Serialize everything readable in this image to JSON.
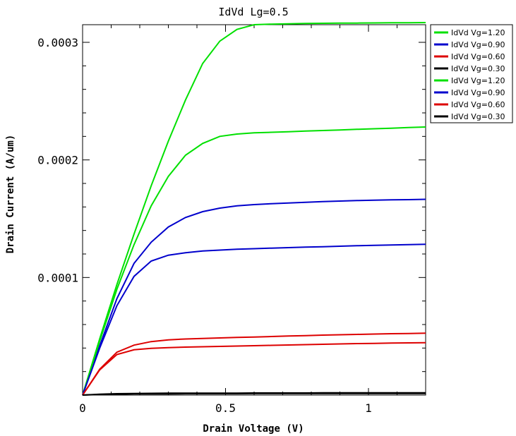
{
  "chart_data": {
    "type": "line",
    "title": "IdVd Lg=0.5",
    "xlabel": "Drain Voltage (V)",
    "ylabel": "Drain Current (A/um)",
    "xlim": [
      0,
      1.2
    ],
    "ylim": [
      0,
      0.000315
    ],
    "xticks": [
      {
        "value": 0,
        "label": "0"
      },
      {
        "value": 0.5,
        "label": "0.5"
      },
      {
        "value": 1,
        "label": "1"
      }
    ],
    "yticks": [
      {
        "value": 0.0001,
        "label": "0.0001"
      },
      {
        "value": 0.0002,
        "label": "0.0002"
      },
      {
        "value": 0.0003,
        "label": "0.0003"
      }
    ],
    "x": [
      0,
      0.06,
      0.12,
      0.18,
      0.24,
      0.3,
      0.36,
      0.42,
      0.48,
      0.54,
      0.6,
      0.66,
      0.72,
      0.78,
      0.84,
      0.9,
      0.96,
      1.02,
      1.08,
      1.14,
      1.2
    ],
    "legend_position": "outside-top-right",
    "series": [
      {
        "name": "IdVd Vg=1.20",
        "color": "#00e000",
        "values": [
          0,
          4.8e-05,
          9.4e-05,
          0.000137,
          0.000178,
          0.000216,
          0.000251,
          0.000282,
          0.000301,
          0.000311,
          0.000315,
          0.0003155,
          0.0003158,
          0.000316,
          0.0003162,
          0.0003163,
          0.0003164,
          0.0003165,
          0.0003166,
          0.0003167,
          0.0003168
        ]
      },
      {
        "name": "IdVd Vg=0.90",
        "color": "#0000cc",
        "values": [
          0,
          4.2e-05,
          8.2e-05,
          0.000112,
          0.00013,
          0.000143,
          0.000151,
          0.000156,
          0.000159,
          0.000161,
          0.000162,
          0.0001628,
          0.0001634,
          0.000164,
          0.0001645,
          0.000165,
          0.0001654,
          0.0001657,
          0.000166,
          0.0001662,
          0.0001665
        ]
      },
      {
        "name": "IdVd Vg=0.60",
        "color": "#dd0000",
        "values": [
          0,
          2.2e-05,
          3.65e-05,
          4.25e-05,
          4.55e-05,
          4.7e-05,
          4.77e-05,
          4.82e-05,
          4.86e-05,
          4.9e-05,
          4.94e-05,
          4.98e-05,
          5.02e-05,
          5.06e-05,
          5.1e-05,
          5.13e-05,
          5.16e-05,
          5.19e-05,
          5.22e-05,
          5.24e-05,
          5.26e-05
        ]
      },
      {
        "name": "IdVd Vg=0.30",
        "color": "#000000",
        "values": [
          0,
          8e-07,
          1.2e-06,
          1.4e-06,
          1.5e-06,
          1.6e-06,
          1.6e-06,
          1.7e-06,
          1.7e-06,
          1.7e-06,
          1.8e-06,
          1.8e-06,
          1.8e-06,
          1.8e-06,
          1.9e-06,
          1.9e-06,
          1.9e-06,
          1.9e-06,
          1.9e-06,
          2e-06,
          2e-06
        ]
      },
      {
        "name": "IdVd Vg=1.20",
        "color": "#00e000",
        "values": [
          0,
          4.6e-05,
          9e-05,
          0.000128,
          0.000161,
          0.000186,
          0.000204,
          0.000214,
          0.00022,
          0.000222,
          0.000223,
          0.0002235,
          0.000224,
          0.0002245,
          0.000225,
          0.0002255,
          0.000226,
          0.0002265,
          0.000227,
          0.0002275,
          0.000228
        ]
      },
      {
        "name": "IdVd Vg=0.90",
        "color": "#0000cc",
        "values": [
          0,
          4e-05,
          7.6e-05,
          0.000101,
          0.000114,
          0.000119,
          0.000121,
          0.0001225,
          0.0001233,
          0.000124,
          0.0001245,
          0.000125,
          0.0001254,
          0.0001258,
          0.0001262,
          0.0001266,
          0.000127,
          0.0001273,
          0.0001276,
          0.0001279,
          0.0001282
        ]
      },
      {
        "name": "IdVd Vg=0.60",
        "color": "#dd0000",
        "values": [
          0,
          2.15e-05,
          3.45e-05,
          3.85e-05,
          3.98e-05,
          4.04e-05,
          4.08e-05,
          4.11e-05,
          4.14e-05,
          4.17e-05,
          4.2e-05,
          4.23e-05,
          4.26e-05,
          4.29e-05,
          4.32e-05,
          4.35e-05,
          4.38e-05,
          4.4e-05,
          4.42e-05,
          4.44e-05,
          4.46e-05
        ]
      },
      {
        "name": "IdVd Vg=0.30",
        "color": "#000000",
        "values": [
          0,
          5e-07,
          8e-07,
          1e-06,
          1.1e-06,
          1.1e-06,
          1.2e-06,
          1.2e-06,
          1.2e-06,
          1.2e-06,
          1.3e-06,
          1.3e-06,
          1.3e-06,
          1.3e-06,
          1.3e-06,
          1.4e-06,
          1.4e-06,
          1.4e-06,
          1.4e-06,
          1.4e-06,
          1.4e-06
        ]
      }
    ]
  }
}
